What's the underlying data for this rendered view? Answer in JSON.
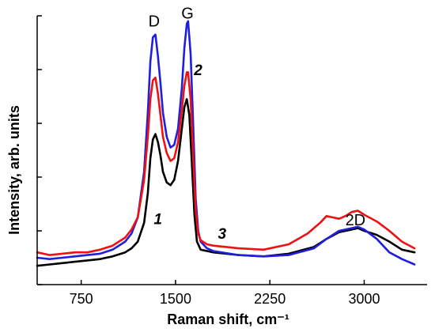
{
  "chart_data": {
    "type": "line",
    "title": "",
    "xlabel": "Raman shift, cm⁻¹",
    "ylabel": "Intensity, arb. units",
    "xlim": [
      400,
      3500
    ],
    "ylim": [
      0,
      10
    ],
    "x_ticks": [
      750,
      1500,
      2250,
      3000
    ],
    "x_tick_labels": [
      "750",
      "1500",
      "2250",
      "3000"
    ],
    "y_ticks": [
      0,
      2,
      4,
      6,
      8,
      10
    ],
    "y_tick_labels_shown": false,
    "grid": false,
    "legend": "none",
    "peak_labels": [
      {
        "text": "D",
        "x": 1330,
        "y": 9.6
      },
      {
        "text": "G",
        "x": 1595,
        "y": 9.9
      },
      {
        "text": "2D",
        "x": 2930,
        "y": 2.2
      }
    ],
    "curve_labels": [
      {
        "text": "1",
        "series": "black",
        "x": 1360,
        "y": 2.25
      },
      {
        "text": "2",
        "series": "blue",
        "x": 1680,
        "y": 7.8
      },
      {
        "text": "3",
        "series": "red",
        "x": 1870,
        "y": 1.7
      }
    ],
    "series": [
      {
        "color": "#000000",
        "x": [
          400,
          500,
          600,
          700,
          800,
          900,
          1000,
          1100,
          1150,
          1200,
          1250,
          1280,
          1300,
          1320,
          1340,
          1360,
          1380,
          1400,
          1430,
          1460,
          1490,
          1520,
          1550,
          1570,
          1590,
          1610,
          1630,
          1650,
          1670,
          1700,
          1750,
          1800,
          2000,
          2200,
          2400,
          2600,
          2700,
          2800,
          2900,
          2950,
          3000,
          3100,
          3200,
          3300,
          3400
        ],
        "y": [
          0.7,
          0.75,
          0.8,
          0.85,
          0.9,
          0.95,
          1.05,
          1.2,
          1.35,
          1.6,
          2.3,
          3.4,
          4.7,
          5.4,
          5.6,
          5.3,
          4.8,
          4.2,
          3.8,
          3.7,
          3.9,
          4.6,
          5.8,
          6.6,
          6.9,
          6.3,
          4.5,
          2.6,
          1.6,
          1.3,
          1.25,
          1.2,
          1.1,
          1.05,
          1.15,
          1.4,
          1.7,
          1.95,
          2.05,
          2.1,
          2.0,
          1.85,
          1.6,
          1.3,
          1.2
        ]
      },
      {
        "color": "#1f1fdd",
        "x": [
          400,
          500,
          600,
          700,
          800,
          900,
          1000,
          1100,
          1150,
          1200,
          1250,
          1280,
          1300,
          1320,
          1340,
          1360,
          1380,
          1400,
          1430,
          1460,
          1490,
          1520,
          1550,
          1570,
          1590,
          1600,
          1620,
          1640,
          1660,
          1680,
          1700,
          1750,
          1800,
          2000,
          2200,
          2400,
          2600,
          2700,
          2800,
          2900,
          2950,
          3000,
          3100,
          3200,
          3300,
          3400
        ],
        "y": [
          1.0,
          0.95,
          1.0,
          1.05,
          1.1,
          1.15,
          1.3,
          1.6,
          1.9,
          2.5,
          4.2,
          6.4,
          8.3,
          9.2,
          9.3,
          8.5,
          7.5,
          6.4,
          5.5,
          5.1,
          5.2,
          5.8,
          7.3,
          8.8,
          9.7,
          9.8,
          8.6,
          6.0,
          3.2,
          2.0,
          1.6,
          1.35,
          1.25,
          1.1,
          1.05,
          1.1,
          1.35,
          1.7,
          2.0,
          2.1,
          2.15,
          2.05,
          1.7,
          1.2,
          0.95,
          0.75
        ]
      },
      {
        "color": "#ee1111",
        "x": [
          400,
          500,
          600,
          700,
          800,
          900,
          1000,
          1100,
          1150,
          1200,
          1250,
          1280,
          1300,
          1320,
          1340,
          1360,
          1380,
          1400,
          1430,
          1460,
          1490,
          1520,
          1550,
          1570,
          1590,
          1600,
          1620,
          1640,
          1660,
          1680,
          1700,
          1750,
          1800,
          2000,
          2200,
          2400,
          2550,
          2650,
          2700,
          2750,
          2800,
          2850,
          2900,
          2950,
          3000,
          3100,
          3200,
          3300,
          3400
        ],
        "y": [
          1.2,
          1.1,
          1.15,
          1.2,
          1.2,
          1.3,
          1.45,
          1.75,
          2.05,
          2.5,
          3.9,
          5.5,
          6.9,
          7.6,
          7.7,
          7.1,
          6.3,
          5.5,
          4.9,
          4.6,
          4.7,
          5.3,
          6.5,
          7.4,
          7.9,
          7.9,
          6.9,
          4.8,
          2.8,
          1.9,
          1.65,
          1.5,
          1.45,
          1.35,
          1.3,
          1.5,
          1.9,
          2.3,
          2.55,
          2.5,
          2.45,
          2.55,
          2.7,
          2.75,
          2.6,
          2.35,
          2.0,
          1.6,
          1.35
        ]
      }
    ]
  }
}
